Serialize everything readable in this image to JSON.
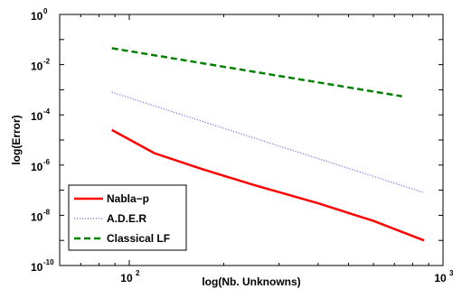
{
  "chart_data": {
    "type": "line",
    "title": "",
    "xlabel": "log(Nb. Unknowns)",
    "ylabel": "log(Error)",
    "x_scale": "log",
    "y_scale": "log",
    "xlim": [
      60,
      1000
    ],
    "ylim": [
      1e-10,
      1
    ],
    "grid": false,
    "legend_position": "bottom-left",
    "x_ticks": [
      {
        "value": 100,
        "base": "10",
        "exp": "2"
      },
      {
        "value": 1000,
        "base": "10",
        "exp": "3"
      }
    ],
    "y_ticks": [
      {
        "value": 1,
        "base": "10",
        "exp": "0"
      },
      {
        "value": 0.01,
        "base": "10",
        "exp": "-2"
      },
      {
        "value": 0.0001,
        "base": "10",
        "exp": "-4"
      },
      {
        "value": 1e-06,
        "base": "10",
        "exp": "-6"
      },
      {
        "value": 1e-08,
        "base": "10",
        "exp": "-8"
      },
      {
        "value": 1e-10,
        "base": "10",
        "exp": "-10"
      }
    ],
    "series": [
      {
        "name": "Nabla−p",
        "color": "#ff0000",
        "style": "solid",
        "x": [
          88,
          120,
          170,
          250,
          400,
          600,
          870
        ],
        "y": [
          2.5e-05,
          3e-06,
          7e-07,
          1.6e-07,
          3e-08,
          6e-09,
          1e-09
        ]
      },
      {
        "name": "A.D.E.R",
        "color": "#7070e0",
        "style": "dotted",
        "x": [
          88,
          870
        ],
        "y": [
          0.0008,
          8e-08
        ]
      },
      {
        "name": "Classical LF",
        "color": "#008000",
        "style": "dashed",
        "x": [
          88,
          740
        ],
        "y": [
          0.045,
          0.00055
        ]
      }
    ]
  }
}
